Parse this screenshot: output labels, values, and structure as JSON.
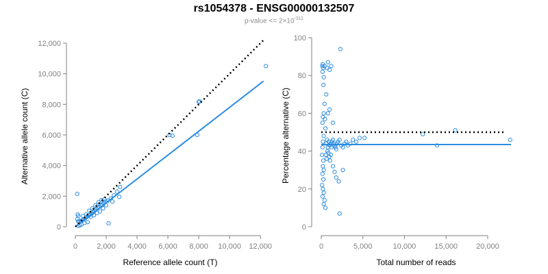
{
  "figure": {
    "title": "rs1054378 - ENSG00000132507",
    "subtitle_prefix": "p-value <= 2×10",
    "subtitle_exponent": "-311"
  },
  "colors": {
    "points": "#2b8ce0",
    "fit": "#2b8ce0",
    "reference": "#000000",
    "axis": "#7f7f7f"
  },
  "chart_data": [
    {
      "type": "scatter",
      "xlabel": "Reference allele count (T)",
      "ylabel": "Alternative allele count (C)",
      "xlim": [
        0,
        12300
      ],
      "ylim": [
        0,
        12000
      ],
      "xticks": [
        0,
        2000,
        4000,
        6000,
        8000,
        10000,
        12000
      ],
      "xtick_labels": [
        "0",
        "2,000",
        "4,000",
        "6,000",
        "8,000",
        "10,000",
        "12,000"
      ],
      "yticks": [
        0,
        2000,
        4000,
        6000,
        8000,
        10000,
        12000
      ],
      "ytick_labels": [
        "0",
        "2,000",
        "4,000",
        "6,000",
        "8,000",
        "10,000",
        "12,000"
      ],
      "points": [
        [
          120,
          2150
        ],
        [
          200,
          700
        ],
        [
          150,
          800
        ],
        [
          130,
          500
        ],
        [
          180,
          350
        ],
        [
          250,
          300
        ],
        [
          350,
          380
        ],
        [
          450,
          420
        ],
        [
          550,
          500
        ],
        [
          650,
          560
        ],
        [
          750,
          640
        ],
        [
          850,
          720
        ],
        [
          950,
          780
        ],
        [
          1050,
          850
        ],
        [
          1150,
          950
        ],
        [
          1250,
          1050
        ],
        [
          1350,
          1150
        ],
        [
          1450,
          1250
        ],
        [
          1550,
          1300
        ],
        [
          1650,
          1400
        ],
        [
          1750,
          1450
        ],
        [
          1850,
          1550
        ],
        [
          1950,
          1650
        ],
        [
          2100,
          1700
        ],
        [
          2300,
          1850
        ],
        [
          2500,
          2050
        ],
        [
          2700,
          2300
        ],
        [
          2900,
          2600
        ],
        [
          2850,
          1950
        ],
        [
          2150,
          220
        ],
        [
          600,
          250
        ],
        [
          800,
          300
        ],
        [
          400,
          150
        ],
        [
          300,
          100
        ],
        [
          200,
          60
        ],
        [
          500,
          700
        ],
        [
          700,
          800
        ],
        [
          900,
          1050
        ],
        [
          1100,
          1200
        ],
        [
          1300,
          1400
        ],
        [
          1500,
          1600
        ],
        [
          1700,
          1750
        ],
        [
          1900,
          1800
        ],
        [
          1000,
          650
        ],
        [
          1200,
          750
        ],
        [
          1400,
          900
        ],
        [
          1600,
          1000
        ],
        [
          1800,
          1200
        ],
        [
          2000,
          1400
        ],
        [
          2400,
          1650
        ],
        [
          6100,
          6000
        ],
        [
          6300,
          5950
        ],
        [
          7900,
          6000
        ],
        [
          8000,
          8150
        ],
        [
          8050,
          8200
        ],
        [
          12350,
          10500
        ]
      ],
      "reference_line": {
        "style": "dotted",
        "x": [
          0,
          12200
        ],
        "y": [
          0,
          12200
        ]
      },
      "fit_line": {
        "style": "solid",
        "x": [
          0,
          12200
        ],
        "y": [
          0,
          9520
        ]
      }
    },
    {
      "type": "scatter",
      "xlabel": "Total number of reads",
      "ylabel": "Percentage alternative (C)",
      "xlim": [
        0,
        22800
      ],
      "ylim": [
        0,
        100
      ],
      "xticks": [
        0,
        5000,
        10000,
        15000,
        20000
      ],
      "xtick_labels": [
        "0",
        "5,000",
        "10,000",
        "15,000",
        "20,000"
      ],
      "yticks": [
        0,
        20,
        40,
        60,
        80,
        100
      ],
      "ytick_labels": [
        "0",
        "20",
        "40",
        "60",
        "80",
        "100"
      ],
      "points": [
        [
          120,
          85
        ],
        [
          180,
          86
        ],
        [
          230,
          84
        ],
        [
          160,
          82
        ],
        [
          300,
          79
        ],
        [
          260,
          75
        ],
        [
          400,
          85
        ],
        [
          800,
          87
        ],
        [
          700,
          84
        ],
        [
          1200,
          85
        ],
        [
          1000,
          83
        ],
        [
          2300,
          94
        ],
        [
          400,
          65
        ],
        [
          300,
          60
        ],
        [
          200,
          58
        ],
        [
          150,
          55
        ],
        [
          500,
          52
        ],
        [
          450,
          57
        ],
        [
          300,
          48
        ],
        [
          200,
          45
        ],
        [
          150,
          42
        ],
        [
          100,
          38
        ],
        [
          250,
          35
        ],
        [
          200,
          32
        ],
        [
          300,
          30
        ],
        [
          150,
          28
        ],
        [
          250,
          25
        ],
        [
          100,
          22
        ],
        [
          200,
          20
        ],
        [
          300,
          18
        ],
        [
          150,
          16
        ],
        [
          400,
          14
        ],
        [
          300,
          12
        ],
        [
          500,
          10
        ],
        [
          2200,
          7
        ],
        [
          600,
          44
        ],
        [
          700,
          46
        ],
        [
          800,
          42
        ],
        [
          900,
          45
        ],
        [
          1000,
          43
        ],
        [
          1100,
          44
        ],
        [
          1200,
          42
        ],
        [
          1300,
          45
        ],
        [
          1400,
          46
        ],
        [
          1500,
          44
        ],
        [
          1600,
          43
        ],
        [
          1700,
          42
        ],
        [
          1800,
          41
        ],
        [
          1900,
          44
        ],
        [
          2000,
          45
        ],
        [
          2200,
          46
        ],
        [
          2400,
          43
        ],
        [
          2600,
          42
        ],
        [
          2800,
          44
        ],
        [
          3000,
          45
        ],
        [
          3200,
          43
        ],
        [
          3500,
          44
        ],
        [
          3800,
          46
        ],
        [
          4200,
          45
        ],
        [
          4600,
          47
        ],
        [
          5200,
          47
        ],
        [
          550,
          38
        ],
        [
          650,
          36
        ],
        [
          750,
          40
        ],
        [
          850,
          39
        ],
        [
          950,
          37
        ],
        [
          1050,
          35
        ],
        [
          1150,
          38
        ],
        [
          1400,
          32
        ],
        [
          1600,
          29
        ],
        [
          1800,
          26
        ],
        [
          2100,
          24
        ],
        [
          2600,
          30
        ],
        [
          800,
          60
        ],
        [
          1000,
          62
        ],
        [
          600,
          70
        ],
        [
          1400,
          55
        ],
        [
          12200,
          49
        ],
        [
          16100,
          51
        ],
        [
          13900,
          43
        ],
        [
          22700,
          46
        ]
      ],
      "reference_line": {
        "style": "dotted",
        "x": [
          0,
          22200
        ],
        "y": [
          50,
          50
        ]
      },
      "fit_line": {
        "style": "solid",
        "x": [
          0,
          22800
        ],
        "y": [
          43.5,
          43.5
        ]
      }
    }
  ]
}
